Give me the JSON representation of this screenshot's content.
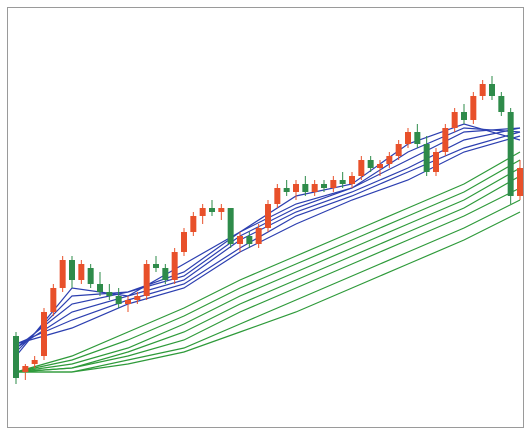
{
  "chart_data": {
    "type": "candlestick",
    "ylim": [
      0,
      100
    ],
    "up_color": "#e8502a",
    "down_color": "#2e8b4a",
    "open": [
      21,
      12,
      14,
      16,
      27,
      33,
      40,
      35,
      38,
      34,
      32,
      31,
      29,
      30,
      31,
      39,
      38,
      35,
      42,
      47,
      51,
      53,
      52,
      53,
      44,
      46,
      44,
      48,
      54,
      58,
      57,
      59,
      57,
      59,
      58,
      60,
      59,
      61,
      65,
      63,
      64,
      66,
      69,
      72,
      69,
      62,
      67,
      73,
      77,
      75,
      81,
      84,
      81,
      77,
      56
    ],
    "high": [
      22,
      14,
      16,
      28,
      34,
      41,
      41,
      40,
      39,
      37,
      34,
      33,
      31,
      32,
      40,
      41,
      39,
      43,
      48,
      52,
      54,
      55,
      54,
      53,
      47,
      47,
      49,
      55,
      59,
      60,
      60,
      61,
      60,
      60,
      61,
      62,
      62,
      66,
      66,
      65,
      67,
      70,
      73,
      74,
      71,
      68,
      74,
      78,
      79,
      82,
      85,
      86,
      82,
      78,
      65
    ],
    "low": [
      9,
      10,
      13,
      15,
      26,
      32,
      33,
      34,
      33,
      31,
      30,
      28,
      27,
      29,
      30,
      37,
      34,
      34,
      41,
      46,
      49,
      51,
      50,
      43,
      42,
      43,
      43,
      47,
      53,
      56,
      55,
      56,
      56,
      57,
      57,
      58,
      58,
      60,
      62,
      61,
      63,
      65,
      68,
      68,
      61,
      61,
      66,
      72,
      74,
      74,
      80,
      80,
      76,
      54,
      55
    ],
    "close": [
      10.5,
      13.5,
      15,
      27,
      33,
      40,
      35,
      39,
      34,
      32,
      31,
      29,
      30,
      31,
      39,
      38,
      35,
      42,
      47,
      51,
      53,
      52,
      53,
      44,
      46,
      44,
      48,
      54,
      58,
      57,
      59,
      57,
      59,
      58,
      60,
      59,
      61,
      65,
      63,
      64,
      66,
      69,
      72,
      69,
      62,
      67,
      73,
      77,
      75,
      81,
      84,
      81,
      77,
      56,
      63
    ],
    "series": [
      {
        "color": "#2c3fb0",
        "x": [
          0,
          6,
          12,
          18,
          24,
          30,
          36,
          42,
          48,
          54
        ],
        "values": [
          16,
          33,
          31,
          39,
          47,
          56,
          59,
          69,
          74,
          70
        ]
      },
      {
        "color": "#2c3fb0",
        "x": [
          0,
          6,
          12,
          18,
          24,
          30,
          36,
          42,
          48,
          54
        ],
        "values": [
          17,
          31,
          32,
          37,
          47,
          54,
          58,
          67,
          73,
          72
        ]
      },
      {
        "color": "#2c3fb0",
        "x": [
          0,
          6,
          12,
          18,
          24,
          30,
          36,
          42,
          48,
          54
        ],
        "values": [
          18,
          29,
          32,
          36,
          46,
          53,
          58,
          65,
          72,
          73
        ]
      },
      {
        "color": "#2c3fb0",
        "x": [
          0,
          6,
          12,
          18,
          24,
          30,
          36,
          42,
          48,
          54
        ],
        "values": [
          18,
          27,
          31,
          35,
          45,
          52,
          57,
          63,
          70,
          73
        ]
      },
      {
        "color": "#2c3fb0",
        "x": [
          0,
          6,
          12,
          18,
          24,
          30,
          36,
          42,
          48,
          54
        ],
        "values": [
          19,
          25,
          30,
          34,
          43,
          51,
          56,
          62,
          68,
          72
        ]
      },
      {
        "color": "#2c3fb0",
        "x": [
          0,
          6,
          12,
          18,
          24,
          30,
          36,
          42,
          48,
          54
        ],
        "values": [
          19,
          23,
          29,
          33,
          42,
          49,
          55,
          60,
          67,
          71
        ]
      },
      {
        "color": "#2e9a3a",
        "x": [
          0,
          6,
          12,
          18,
          24,
          30,
          36,
          42,
          48,
          54
        ],
        "values": [
          12,
          16,
          22,
          28,
          35,
          41,
          47,
          53,
          59,
          67
        ]
      },
      {
        "color": "#2e9a3a",
        "x": [
          0,
          6,
          12,
          18,
          24,
          30,
          36,
          42,
          48,
          54
        ],
        "values": [
          12,
          15,
          20,
          26,
          33,
          39,
          45,
          51,
          57,
          65
        ]
      },
      {
        "color": "#2e9a3a",
        "x": [
          0,
          6,
          12,
          18,
          24,
          30,
          36,
          42,
          48,
          54
        ],
        "values": [
          12,
          14,
          18,
          24,
          31,
          37,
          43,
          49,
          55,
          63
        ]
      },
      {
        "color": "#2e9a3a",
        "x": [
          0,
          6,
          12,
          18,
          24,
          30,
          36,
          42,
          48,
          54
        ],
        "values": [
          12,
          13,
          17,
          22,
          29,
          35,
          41,
          47,
          53,
          61
        ]
      },
      {
        "color": "#2e9a3a",
        "x": [
          0,
          6,
          12,
          18,
          24,
          30,
          36,
          42,
          48,
          54
        ],
        "values": [
          12,
          13,
          16,
          20,
          27,
          33,
          39,
          45,
          51,
          58
        ]
      },
      {
        "color": "#2e9a3a",
        "x": [
          0,
          6,
          12,
          18,
          24,
          30,
          36,
          42,
          48,
          54
        ],
        "values": [
          12,
          12,
          15,
          18,
          24,
          30,
          36,
          42,
          48,
          55
        ]
      },
      {
        "color": "#2e9a3a",
        "x": [
          0,
          6,
          12,
          18,
          24,
          30,
          36,
          42,
          48,
          54
        ],
        "values": [
          12,
          12,
          14,
          17,
          22,
          27,
          33,
          39,
          45,
          52
        ]
      }
    ]
  }
}
